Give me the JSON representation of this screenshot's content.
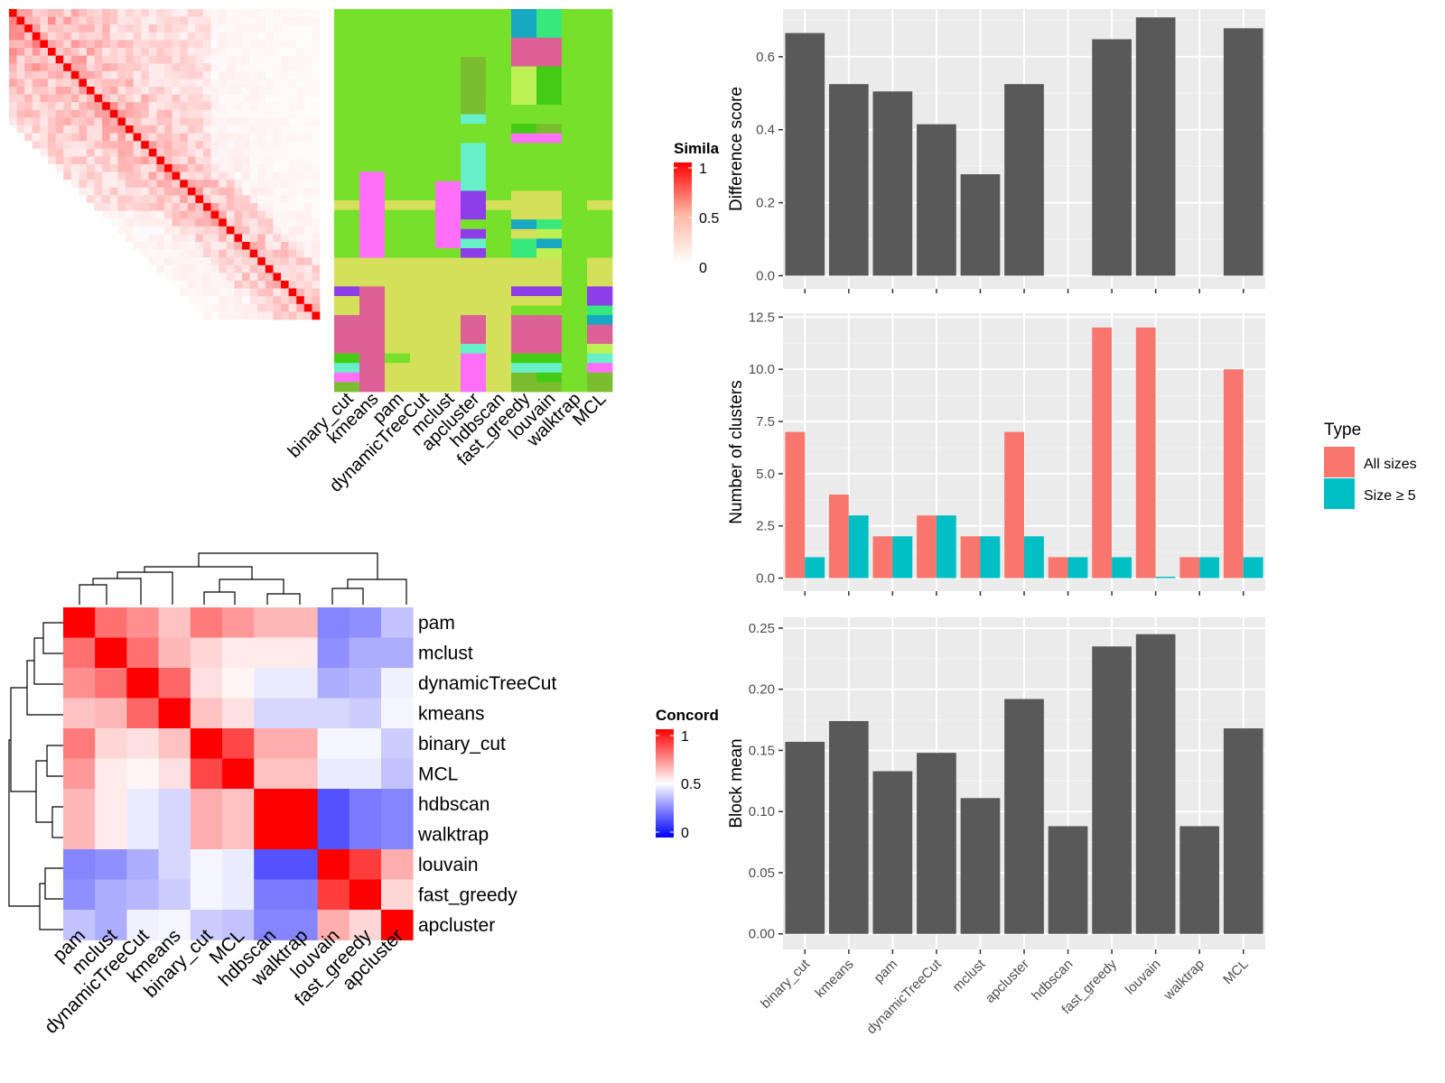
{
  "colors": {
    "panel_bg": "#ebebeb",
    "grid": "#ffffff",
    "bar": "#595959",
    "all_sizes": "#f8766d",
    "size_ge5": "#00bfc4",
    "diag": "#ff0000",
    "concord_high": "#ff0000",
    "concord_mid": "#ffffff",
    "concord_low": "#0000ff"
  },
  "similarity_heatmap": {
    "legend_title": "Simila",
    "legend_ticks": [
      "1",
      "0.5",
      "0"
    ],
    "size": 40
  },
  "class_heatmap": {
    "methods": [
      "binary_cut",
      "kmeans",
      "pam",
      "dynamicTreeCut",
      "mclust",
      "apcluster",
      "hdbscan",
      "fast_greedy",
      "louvain",
      "walktrap",
      "MCL"
    ],
    "palette": [
      "#77e02a",
      "#d4e05a",
      "#ff6ff8",
      "#dd6196",
      "#8d3ee8",
      "#37e87d",
      "#67f0c8",
      "#18a9c2",
      "#7abe30",
      "#bdf054",
      "#44cc14",
      "#39e9e6",
      "#ff78c0"
    ]
  },
  "concordance": {
    "legend_title": "Concord",
    "legend_ticks": [
      "1",
      "0.5",
      "0"
    ],
    "methods": [
      "pam",
      "mclust",
      "dynamicTreeCut",
      "kmeans",
      "binary_cut",
      "MCL",
      "hdbscan",
      "walktrap",
      "louvain",
      "fast_greedy",
      "apcluster"
    ],
    "matrix": [
      [
        1.0,
        0.78,
        0.72,
        0.62,
        0.76,
        0.7,
        0.64,
        0.64,
        0.26,
        0.28,
        0.38
      ],
      [
        0.78,
        1.0,
        0.78,
        0.64,
        0.58,
        0.54,
        0.54,
        0.54,
        0.28,
        0.34,
        0.34
      ],
      [
        0.72,
        0.78,
        1.0,
        0.8,
        0.56,
        0.52,
        0.46,
        0.46,
        0.34,
        0.36,
        0.47
      ],
      [
        0.62,
        0.64,
        0.8,
        1.0,
        0.62,
        0.56,
        0.42,
        0.42,
        0.42,
        0.4,
        0.48
      ],
      [
        0.76,
        0.58,
        0.56,
        0.62,
        1.0,
        0.86,
        0.66,
        0.66,
        0.48,
        0.48,
        0.4
      ],
      [
        0.7,
        0.54,
        0.52,
        0.56,
        0.86,
        1.0,
        0.62,
        0.62,
        0.46,
        0.46,
        0.38
      ],
      [
        0.64,
        0.54,
        0.46,
        0.42,
        0.66,
        0.62,
        1.0,
        1.0,
        0.16,
        0.24,
        0.26
      ],
      [
        0.64,
        0.54,
        0.46,
        0.42,
        0.66,
        0.62,
        1.0,
        1.0,
        0.16,
        0.24,
        0.26
      ],
      [
        0.26,
        0.28,
        0.34,
        0.42,
        0.48,
        0.46,
        0.16,
        0.16,
        1.0,
        0.88,
        0.66
      ],
      [
        0.28,
        0.34,
        0.36,
        0.4,
        0.48,
        0.46,
        0.24,
        0.24,
        0.88,
        1.0,
        0.58
      ],
      [
        0.38,
        0.34,
        0.47,
        0.48,
        0.4,
        0.38,
        0.26,
        0.26,
        0.66,
        0.58,
        1.0
      ]
    ]
  },
  "chart_data": [
    {
      "type": "bar",
      "ylabel": "Difference score",
      "categories": [
        "binary_cut",
        "kmeans",
        "pam",
        "dynamicTreeCut",
        "mclust",
        "apcluster",
        "hdbscan",
        "fast_greedy",
        "louvain",
        "walktrap",
        "MCL"
      ],
      "values": [
        0.665,
        0.525,
        0.505,
        0.415,
        0.278,
        0.525,
        null,
        0.648,
        0.708,
        null,
        0.678
      ],
      "ylim": [
        0,
        0.72
      ],
      "yticks": [
        "0.0",
        "0.2",
        "0.4",
        "0.6"
      ],
      "grid": true
    },
    {
      "type": "bar",
      "ylabel": "Number of clusters",
      "categories": [
        "binary_cut",
        "kmeans",
        "pam",
        "dynamicTreeCut",
        "mclust",
        "apcluster",
        "hdbscan",
        "fast_greedy",
        "louvain",
        "walktrap",
        "MCL"
      ],
      "series": [
        {
          "name": "All sizes",
          "values": [
            7,
            4,
            2,
            3,
            2,
            7,
            1,
            12,
            12,
            1,
            10
          ]
        },
        {
          "name": "Size ≥ 5",
          "values": [
            1,
            3,
            2,
            3,
            2,
            2,
            1,
            1,
            0,
            1,
            1
          ]
        }
      ],
      "ylim": [
        0,
        12.5
      ],
      "yticks": [
        "0.0",
        "2.5",
        "5.0",
        "7.5",
        "10.0",
        "12.5"
      ],
      "legend_title": "Type",
      "legend_position": "right",
      "grid": true
    },
    {
      "type": "bar",
      "ylabel": "Block mean",
      "categories": [
        "binary_cut",
        "kmeans",
        "pam",
        "dynamicTreeCut",
        "mclust",
        "apcluster",
        "hdbscan",
        "fast_greedy",
        "louvain",
        "walktrap",
        "MCL"
      ],
      "values": [
        0.157,
        0.174,
        0.133,
        0.148,
        0.111,
        0.192,
        0.088,
        0.235,
        0.245,
        0.088,
        0.168
      ],
      "ylim": [
        0,
        0.255
      ],
      "yticks": [
        "0.00",
        "0.05",
        "0.10",
        "0.15",
        "0.20",
        "0.25"
      ],
      "grid": true
    }
  ]
}
